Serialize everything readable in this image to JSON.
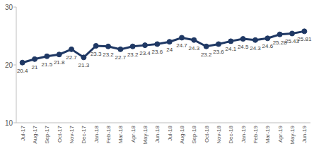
{
  "chart_data": {
    "type": "line",
    "categories": [
      "Jul-17",
      "Aug-17",
      "Sep-17",
      "Oct-17",
      "Nov-17",
      "Dec-17",
      "Jan-18",
      "Feb-18",
      "Mar-18",
      "Apr-18",
      "May-18",
      "Jun-18",
      "Jul-18",
      "Aug-18",
      "Sep-18",
      "Oct-18",
      "Nov-18",
      "Dec-18",
      "Jan-19",
      "Feb-19",
      "Mar-19",
      "Apr-19",
      "May-19",
      "Jun-19"
    ],
    "values": [
      20.4,
      21,
      21.5,
      21.8,
      22.7,
      21.3,
      23.3,
      23.2,
      22.7,
      23.2,
      23.4,
      23.6,
      24,
      24.7,
      24.3,
      23.2,
      23.6,
      24.1,
      24.5,
      24.3,
      24.6,
      25.28,
      25.43,
      25.81
    ],
    "color": "#1f3864",
    "marker": "circle",
    "ylim": [
      10,
      30
    ],
    "yticks": [
      10,
      20,
      30
    ],
    "grid": false,
    "data_labels": true
  }
}
